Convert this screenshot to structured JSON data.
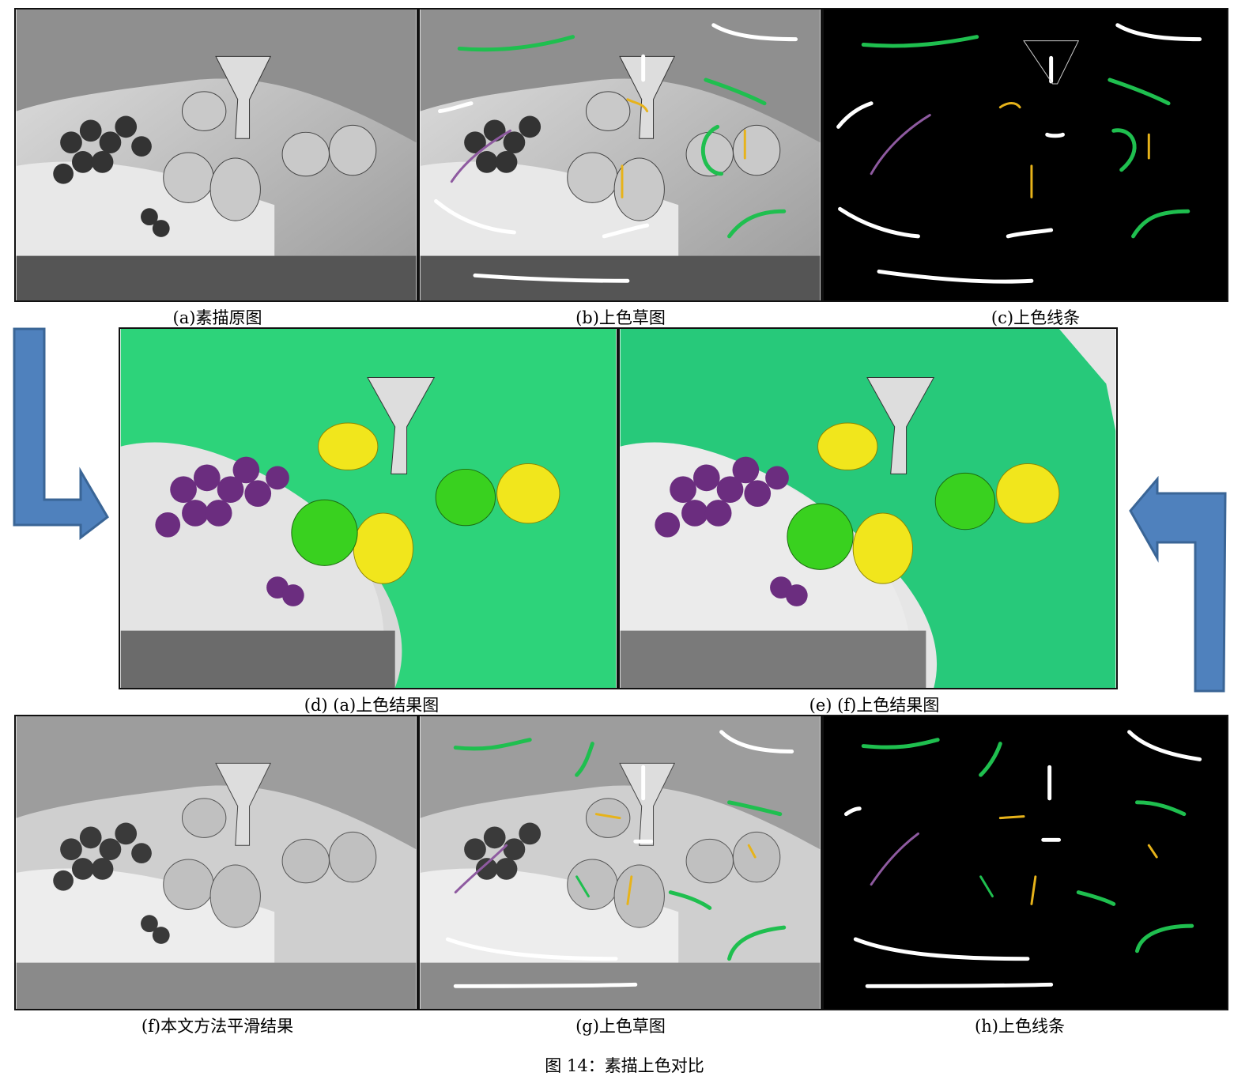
{
  "figure": {
    "caption": "图 14：素描上色对比"
  },
  "panels": [
    {
      "id": "a",
      "caption": "(a)素描原图",
      "kind": "sketch"
    },
    {
      "id": "b",
      "caption": "(b)上色草图",
      "kind": "scribble"
    },
    {
      "id": "c",
      "caption": "(c)上色线条",
      "kind": "strokes"
    },
    {
      "id": "d",
      "caption": "(d) (a)上色结果图",
      "kind": "color"
    },
    {
      "id": "e",
      "caption": "(e) (f)上色结果图",
      "kind": "color-smooth"
    },
    {
      "id": "f",
      "caption": "(f)本文方法平滑结果",
      "kind": "smooth"
    },
    {
      "id": "g",
      "caption": "(g)上色草图",
      "kind": "scribble"
    },
    {
      "id": "h",
      "caption": "(h)上色线条",
      "kind": "strokes"
    }
  ],
  "colors": {
    "arrow": "#4f81bd",
    "arrow_edge": "#3a6596",
    "cloth_green": "#2dd37a",
    "grape_purple": "#6b2d7f",
    "pear_yellow": "#f1e61c",
    "apple_green": "#39d11f",
    "stroke_white": "#ffffff",
    "stroke_green": "#1fbf4f",
    "stroke_yellow": "#e7b31a",
    "stroke_purple": "#8e5aa0"
  }
}
